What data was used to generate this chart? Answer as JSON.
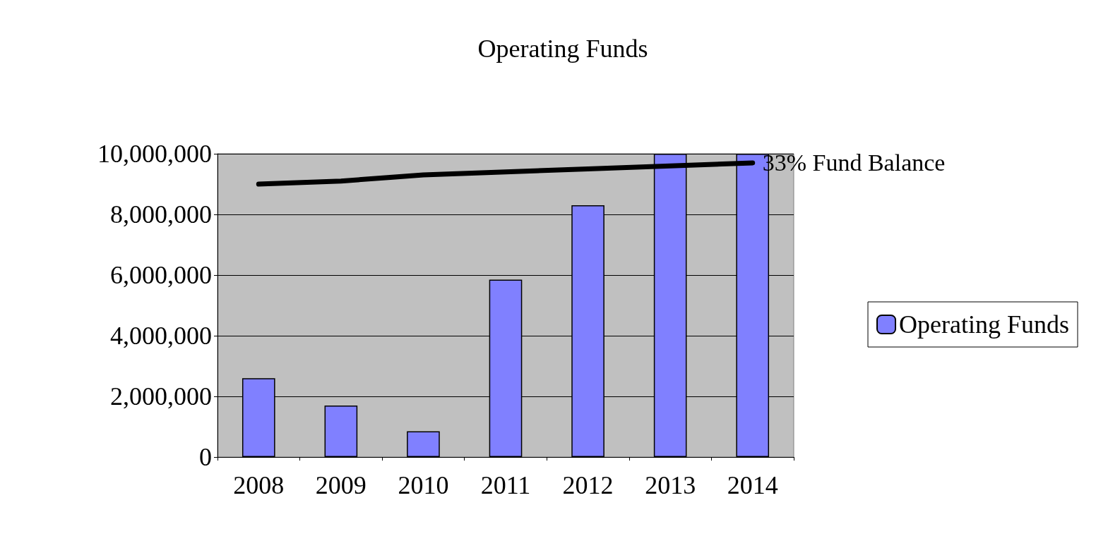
{
  "chart_data": {
    "type": "bar",
    "title": "Operating Funds",
    "categories": [
      "2008",
      "2009",
      "2010",
      "2011",
      "2012",
      "2013",
      "2014"
    ],
    "series": [
      {
        "name": "Operating Funds",
        "color": "#8080ff",
        "values": [
          2600000,
          1700000,
          850000,
          5850000,
          8300000,
          10000000,
          10000000
        ]
      },
      {
        "name": "33% Fund Balance",
        "type": "line",
        "color": "#000000",
        "values": [
          9000000,
          9100000,
          9300000,
          9400000,
          9500000,
          9600000,
          9700000
        ]
      }
    ],
    "ylim": [
      0,
      10000000
    ],
    "yticks": [
      {
        "value": 0,
        "label": "0"
      },
      {
        "value": 2000000,
        "label": "2,000,000"
      },
      {
        "value": 4000000,
        "label": "4,000,000"
      },
      {
        "value": 6000000,
        "label": "6,000,000"
      },
      {
        "value": 8000000,
        "label": "8,000,000"
      },
      {
        "value": 10000000,
        "label": "10,000,000"
      }
    ],
    "grid": "y",
    "legend": "right",
    "marker": "none",
    "line_style": "solid"
  }
}
